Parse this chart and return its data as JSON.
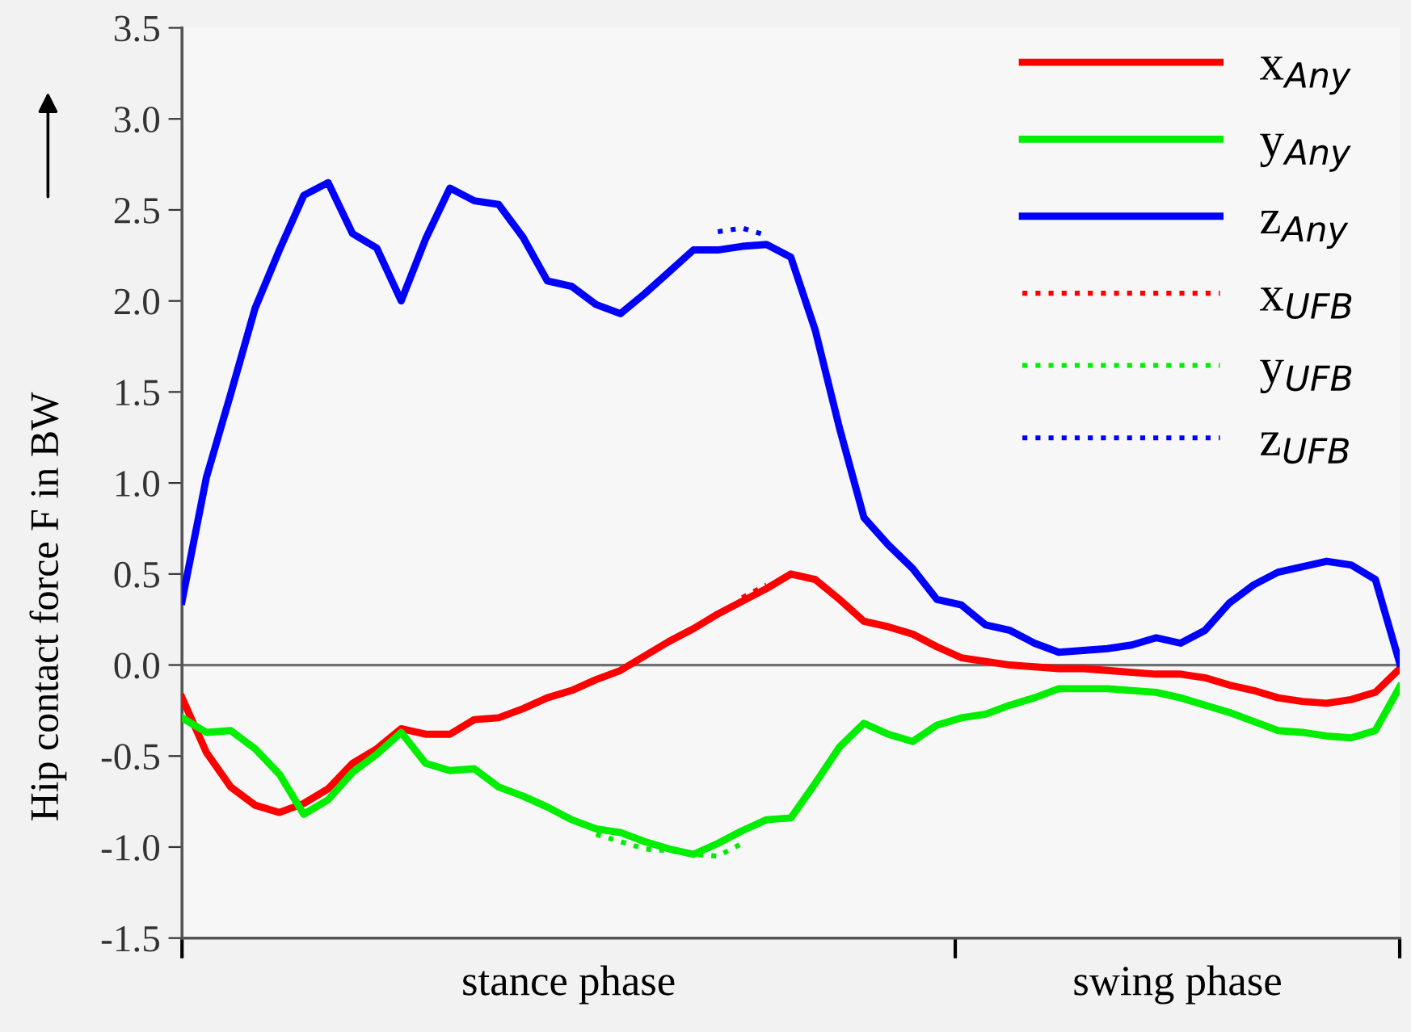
{
  "chart_data": {
    "type": "line",
    "ylabel": "Hip contact force F in BW",
    "annotations": [
      "stance phase",
      "swing phase"
    ],
    "categories": [
      null,
      null,
      null,
      null,
      null,
      null,
      null,
      null,
      null,
      null,
      null,
      null,
      null,
      null,
      null,
      null,
      null,
      null,
      null,
      null,
      null,
      null,
      null,
      null,
      null,
      null,
      null,
      null,
      null,
      null,
      null,
      null,
      null,
      null,
      null,
      null,
      null,
      null,
      null,
      null,
      null,
      null,
      null,
      null,
      null,
      null,
      null,
      null,
      null,
      null,
      null
    ],
    "ylim": [
      -1.5,
      3.5
    ],
    "yticks": [
      {
        "value": -1.5,
        "label": "-1.5"
      },
      {
        "value": -1,
        "label": "-1.0"
      },
      {
        "value": -0.5,
        "label": "-0.5"
      },
      {
        "value": 0,
        "label": "0.0"
      },
      {
        "value": 0.5,
        "label": "0.5"
      },
      {
        "value": 1,
        "label": "1.0"
      },
      {
        "value": 1.5,
        "label": "1.5"
      },
      {
        "value": 2,
        "label": "2.0"
      },
      {
        "value": 2.5,
        "label": "2.5"
      },
      {
        "value": 3,
        "label": "3.0"
      },
      {
        "value": 3.5,
        "label": "3.5"
      }
    ],
    "tick_labels": "y",
    "grid": false,
    "legend": "top right",
    "ref_lines": [
      {
        "axis": "y",
        "value": 0,
        "label": null,
        "color": "#707070",
        "line_style": "solid"
      }
    ],
    "series": [
      {
        "name": "x$_{Any}$",
        "color": "#ff0000",
        "line_style": "solid",
        "values": [
          -0.18,
          -0.48,
          -0.67,
          -0.77,
          -0.81,
          -0.76,
          -0.68,
          -0.54,
          -0.46,
          -0.35,
          -0.38,
          -0.38,
          -0.3,
          -0.29,
          -0.24,
          -0.18,
          -0.14,
          -0.08,
          -0.03,
          0.05,
          0.13,
          0.2,
          0.28,
          0.35,
          0.42,
          0.5,
          0.47,
          0.36,
          0.24,
          0.21,
          0.17,
          0.1,
          0.04,
          0.02,
          0.0,
          -0.01,
          -0.02,
          -0.02,
          -0.03,
          -0.04,
          -0.05,
          -0.05,
          -0.07,
          -0.11,
          -0.14,
          -0.18,
          -0.2,
          -0.21,
          -0.19,
          -0.15,
          -0.02
        ]
      },
      {
        "name": "y$_{Any}$",
        "color": "#00ee00",
        "line_style": "solid",
        "values": [
          -0.29,
          -0.37,
          -0.36,
          -0.46,
          -0.6,
          -0.82,
          -0.74,
          -0.59,
          -0.49,
          -0.37,
          -0.54,
          -0.58,
          -0.57,
          -0.67,
          -0.72,
          -0.78,
          -0.85,
          -0.9,
          -0.92,
          -0.97,
          -1.01,
          -1.04,
          -0.98,
          -0.91,
          -0.85,
          -0.84,
          -0.65,
          -0.45,
          -0.32,
          -0.38,
          -0.42,
          -0.33,
          -0.29,
          -0.27,
          -0.22,
          -0.18,
          -0.13,
          -0.13,
          -0.13,
          -0.14,
          -0.15,
          -0.18,
          -0.22,
          -0.26,
          -0.31,
          -0.36,
          -0.37,
          -0.39,
          -0.4,
          -0.36,
          -0.12
        ]
      },
      {
        "name": "z$_{Any}$",
        "color": "#0000ff",
        "line_style": "solid",
        "values": [
          0.35,
          1.03,
          1.49,
          1.96,
          2.28,
          2.58,
          2.65,
          2.37,
          2.29,
          2.0,
          2.34,
          2.62,
          2.55,
          2.53,
          2.35,
          2.11,
          2.08,
          1.98,
          1.93,
          2.04,
          2.16,
          2.28,
          2.28,
          2.3,
          2.31,
          2.24,
          1.84,
          1.3,
          0.81,
          0.66,
          0.53,
          0.36,
          0.33,
          0.22,
          0.19,
          0.12,
          0.07,
          0.08,
          0.09,
          0.11,
          0.15,
          0.12,
          0.19,
          0.34,
          0.44,
          0.51,
          0.54,
          0.57,
          0.55,
          0.47,
          0.01
        ]
      },
      {
        "name": "x$_{UFB}$",
        "color": "#ff0000",
        "line_style": "dotted",
        "values": [
          null,
          null,
          null,
          null,
          null,
          null,
          null,
          null,
          null,
          null,
          null,
          null,
          null,
          null,
          null,
          null,
          null,
          null,
          null,
          null,
          null,
          null,
          null,
          0.37,
          0.44,
          null,
          null,
          null,
          null,
          null,
          null,
          null,
          null,
          null,
          null,
          null,
          null,
          null,
          null,
          null,
          null,
          null,
          null,
          null,
          null,
          null,
          null,
          null,
          null,
          null,
          null
        ]
      },
      {
        "name": "y$_{UFB}$",
        "color": "#00ee00",
        "line_style": "dotted",
        "values": [
          null,
          null,
          null,
          null,
          null,
          null,
          null,
          null,
          null,
          null,
          null,
          null,
          null,
          null,
          null,
          null,
          null,
          -0.93,
          -0.97,
          -1.01,
          -1.02,
          -1.04,
          -1.05,
          -0.98,
          null,
          null,
          null,
          null,
          null,
          null,
          null,
          null,
          null,
          null,
          null,
          null,
          null,
          null,
          null,
          null,
          null,
          null,
          null,
          null,
          null,
          null,
          null,
          null,
          null,
          null,
          null
        ]
      },
      {
        "name": "z$_{UFB}$",
        "color": "#0000ff",
        "line_style": "dotted",
        "values": [
          null,
          null,
          null,
          null,
          null,
          null,
          null,
          null,
          null,
          null,
          null,
          null,
          null,
          null,
          null,
          null,
          null,
          null,
          null,
          null,
          null,
          null,
          2.38,
          2.4,
          2.36,
          null,
          null,
          null,
          null,
          null,
          null,
          null,
          null,
          null,
          null,
          null,
          null,
          null,
          null,
          null,
          null,
          null,
          null,
          null,
          null,
          null,
          null,
          null,
          null,
          null,
          null
        ]
      }
    ]
  }
}
